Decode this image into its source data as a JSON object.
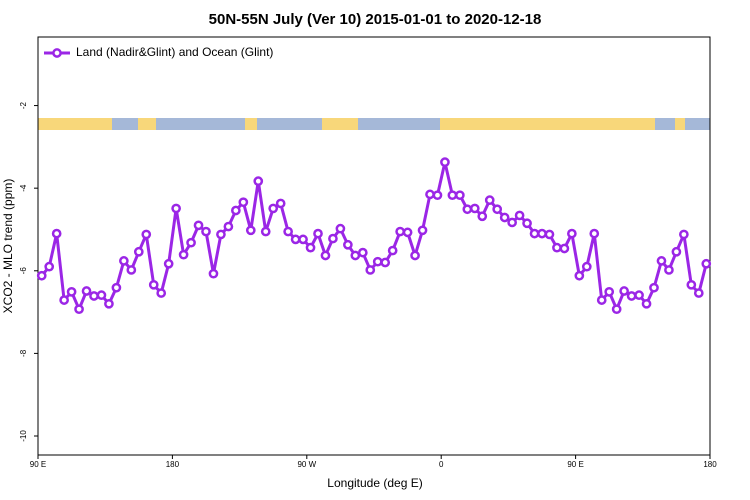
{
  "chart_data": {
    "type": "line",
    "title": "50N-55N July (Ver 10)   2015-01-01 to 2020-12-18",
    "xlabel": "Longitude (deg E)",
    "ylabel": "XCO2 - MLO trend (ppm)",
    "legend": "upper left",
    "grid": false,
    "xlim": [
      90,
      540
    ],
    "ylim": [
      -10.46,
      -0.34
    ],
    "xticks": [
      {
        "value": 90,
        "label": "90 E"
      },
      180,
      {
        "value": 270,
        "label": "90 W"
      },
      {
        "value": 360,
        "label": "0"
      },
      {
        "value": 450,
        "label": "90 E"
      },
      {
        "value": 540,
        "label": "180"
      }
    ],
    "yticks": [
      -10,
      -8,
      -6,
      -4,
      -2
    ],
    "x": [
      92.5,
      97.5,
      102.5,
      107.5,
      112.5,
      117.5,
      122.5,
      127.5,
      132.5,
      137.5,
      142.5,
      147.5,
      152.5,
      157.5,
      162.5,
      167.5,
      172.5,
      177.5,
      182.5,
      187.5,
      192.5,
      197.5,
      202.5,
      207.5,
      212.5,
      217.5,
      222.5,
      227.5,
      232.5,
      237.5,
      242.5,
      247.5,
      252.5,
      257.5,
      262.5,
      267.5,
      272.5,
      277.5,
      282.5,
      287.5,
      292.5,
      297.5,
      302.5,
      307.5,
      312.5,
      317.5,
      322.5,
      327.5,
      332.5,
      337.5,
      342.5,
      347.5,
      352.5,
      357.5,
      362.5,
      367.5,
      372.5,
      377.5,
      382.5,
      387.5,
      392.5,
      397.5,
      402.5,
      407.5,
      412.5,
      417.5,
      422.5,
      427.5,
      432.5,
      437.5,
      442.5,
      447.5,
      452.5,
      457.5,
      462.5,
      467.5,
      472.5,
      477.5,
      482.5,
      487.5,
      492.5,
      497.5,
      502.5,
      507.5,
      512.5,
      517.5,
      522.5,
      527.5,
      532.5,
      537.5
    ],
    "series": [
      {
        "name": "Land (Nadir&Glint) and Ocean (Glint)",
        "color": "#9b26e6",
        "values": [
          -6.12,
          -5.9,
          -5.1,
          -6.71,
          -6.51,
          -6.93,
          -6.49,
          -6.61,
          -6.59,
          -6.8,
          -6.41,
          -5.76,
          -5.98,
          -5.54,
          -5.12,
          -6.34,
          -6.54,
          -5.83,
          -4.49,
          -5.61,
          -5.32,
          -4.9,
          -5.05,
          -6.07,
          -5.12,
          -4.93,
          -4.54,
          -4.34,
          -5.02,
          -3.83,
          -5.05,
          -4.49,
          -4.37,
          -5.05,
          -5.24,
          -5.24,
          -5.44,
          -5.1,
          -5.63,
          -5.22,
          -4.98,
          -5.37,
          -5.63,
          -5.56,
          -5.98,
          -5.78,
          -5.8,
          -5.51,
          -5.05,
          -5.07,
          -5.63,
          -5.02,
          -4.15,
          -4.17,
          -3.37,
          -4.17,
          -4.17,
          -4.51,
          -4.49,
          -4.68,
          -4.29,
          -4.51,
          -4.71,
          -4.83,
          -4.66,
          -4.85,
          -5.1,
          -5.1,
          -5.12,
          -5.44,
          -5.46,
          -5.1,
          -6.12,
          -5.9,
          -5.1,
          -6.71,
          -6.51,
          -6.93,
          -6.49,
          -6.61,
          -6.59,
          -6.8,
          -6.41,
          -5.76,
          -5.98,
          -5.54,
          -5.12,
          -6.34,
          -6.54,
          -5.83
        ]
      }
    ]
  }
}
